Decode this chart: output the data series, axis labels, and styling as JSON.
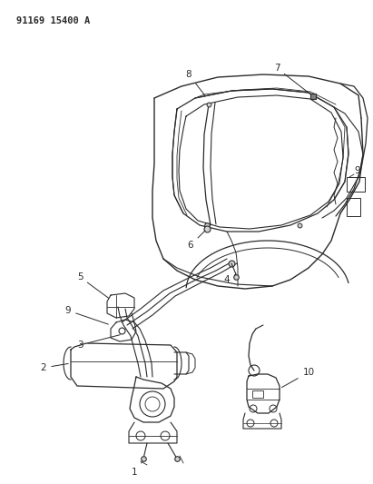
{
  "title_code": "91169 15400 A",
  "background_color": "#ffffff",
  "line_color": "#2a2a2a",
  "fig_width": 4.11,
  "fig_height": 5.33,
  "dpi": 100
}
